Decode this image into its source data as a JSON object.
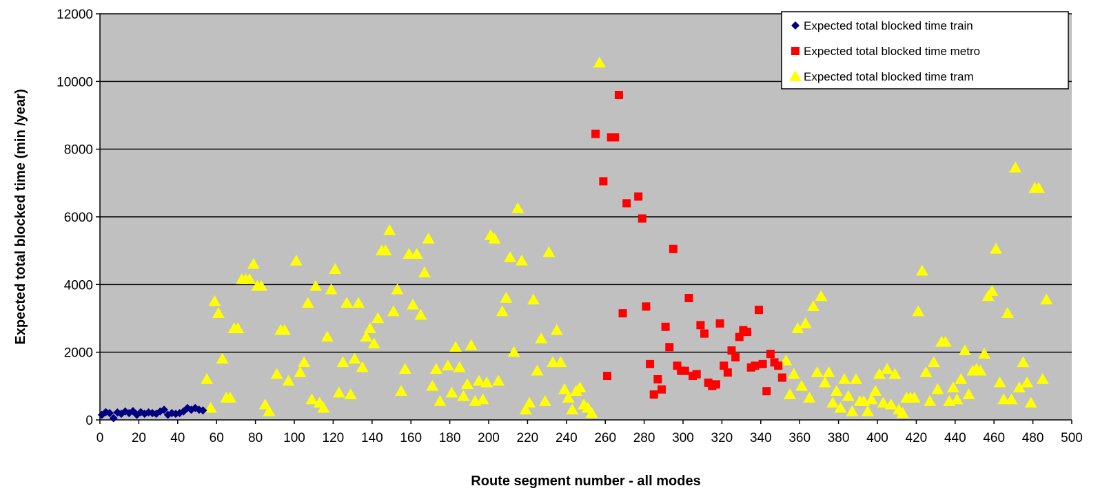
{
  "chart_data": {
    "type": "scatter",
    "title": "",
    "xlabel": "Route segment number - all modes",
    "ylabel": "Expected total blocked time (min /year)",
    "xlim": [
      0,
      500
    ],
    "ylim": [
      0,
      12000
    ],
    "x_ticks": [
      0,
      20,
      40,
      60,
      80,
      100,
      120,
      140,
      160,
      180,
      200,
      220,
      240,
      260,
      280,
      300,
      320,
      340,
      360,
      380,
      400,
      420,
      440,
      460,
      480,
      500
    ],
    "y_ticks": [
      0,
      2000,
      4000,
      6000,
      8000,
      10000,
      12000
    ],
    "grid": "horizontal",
    "plot_background": "#c0c0c0",
    "legend_position": "top-right",
    "series": [
      {
        "name": "Expected total blocked time train",
        "marker": "diamond",
        "color": "#000080",
        "points": [
          [
            1,
            150
          ],
          [
            3,
            230
          ],
          [
            5,
            200
          ],
          [
            7,
            50
          ],
          [
            9,
            220
          ],
          [
            11,
            180
          ],
          [
            13,
            250
          ],
          [
            15,
            200
          ],
          [
            17,
            260
          ],
          [
            19,
            150
          ],
          [
            21,
            230
          ],
          [
            23,
            180
          ],
          [
            25,
            220
          ],
          [
            27,
            200
          ],
          [
            29,
            180
          ],
          [
            31,
            250
          ],
          [
            33,
            300
          ],
          [
            35,
            150
          ],
          [
            37,
            200
          ],
          [
            39,
            180
          ],
          [
            41,
            200
          ],
          [
            43,
            250
          ],
          [
            45,
            350
          ],
          [
            47,
            300
          ],
          [
            49,
            350
          ],
          [
            51,
            300
          ],
          [
            53,
            280
          ]
        ]
      },
      {
        "name": "Expected total blocked time metro",
        "marker": "square",
        "color": "#ff0000",
        "points": [
          [
            255,
            8450
          ],
          [
            259,
            7050
          ],
          [
            261,
            1300
          ],
          [
            263,
            8350
          ],
          [
            265,
            8350
          ],
          [
            267,
            9600
          ],
          [
            269,
            3150
          ],
          [
            271,
            6400
          ],
          [
            277,
            6600
          ],
          [
            279,
            5950
          ],
          [
            281,
            3350
          ],
          [
            283,
            1650
          ],
          [
            285,
            750
          ],
          [
            287,
            1200
          ],
          [
            289,
            900
          ],
          [
            291,
            2750
          ],
          [
            293,
            2150
          ],
          [
            295,
            5050
          ],
          [
            297,
            1600
          ],
          [
            299,
            1450
          ],
          [
            301,
            1450
          ],
          [
            303,
            3600
          ],
          [
            305,
            1300
          ],
          [
            307,
            1350
          ],
          [
            309,
            2800
          ],
          [
            311,
            2550
          ],
          [
            313,
            1100
          ],
          [
            315,
            1000
          ],
          [
            317,
            1050
          ],
          [
            319,
            2850
          ],
          [
            321,
            1600
          ],
          [
            323,
            1400
          ],
          [
            325,
            2050
          ],
          [
            327,
            1850
          ],
          [
            329,
            2450
          ],
          [
            331,
            2650
          ],
          [
            333,
            2600
          ],
          [
            335,
            1550
          ],
          [
            337,
            1600
          ],
          [
            339,
            3250
          ],
          [
            341,
            1650
          ],
          [
            343,
            850
          ],
          [
            345,
            1950
          ],
          [
            347,
            1700
          ],
          [
            349,
            1600
          ],
          [
            351,
            1250
          ]
        ]
      },
      {
        "name": "Expected total blocked time tram",
        "marker": "triangle",
        "color": "#ffff00",
        "points": [
          [
            55,
            1200
          ],
          [
            57,
            350
          ],
          [
            59,
            3500
          ],
          [
            61,
            3150
          ],
          [
            63,
            1800
          ],
          [
            65,
            650
          ],
          [
            67,
            650
          ],
          [
            69,
            2700
          ],
          [
            71,
            2700
          ],
          [
            73,
            4150
          ],
          [
            75,
            4150
          ],
          [
            77,
            4150
          ],
          [
            79,
            4600
          ],
          [
            81,
            3950
          ],
          [
            83,
            3950
          ],
          [
            85,
            450
          ],
          [
            87,
            250
          ],
          [
            91,
            1350
          ],
          [
            93,
            2650
          ],
          [
            95,
            2650
          ],
          [
            97,
            1150
          ],
          [
            101,
            4700
          ],
          [
            103,
            1400
          ],
          [
            105,
            1700
          ],
          [
            107,
            3450
          ],
          [
            109,
            600
          ],
          [
            111,
            3950
          ],
          [
            113,
            500
          ],
          [
            115,
            350
          ],
          [
            117,
            2450
          ],
          [
            119,
            3850
          ],
          [
            121,
            4450
          ],
          [
            123,
            800
          ],
          [
            125,
            1700
          ],
          [
            127,
            3450
          ],
          [
            129,
            750
          ],
          [
            131,
            1800
          ],
          [
            133,
            3450
          ],
          [
            135,
            1550
          ],
          [
            137,
            2450
          ],
          [
            139,
            2700
          ],
          [
            141,
            2250
          ],
          [
            143,
            3000
          ],
          [
            145,
            5000
          ],
          [
            147,
            5000
          ],
          [
            149,
            5600
          ],
          [
            151,
            3200
          ],
          [
            153,
            3850
          ],
          [
            155,
            850
          ],
          [
            157,
            1500
          ],
          [
            159,
            4900
          ],
          [
            161,
            3400
          ],
          [
            163,
            4900
          ],
          [
            165,
            3100
          ],
          [
            167,
            4350
          ],
          [
            169,
            5350
          ],
          [
            171,
            1000
          ],
          [
            173,
            1500
          ],
          [
            175,
            550
          ],
          [
            179,
            1600
          ],
          [
            181,
            800
          ],
          [
            183,
            2150
          ],
          [
            185,
            1550
          ],
          [
            187,
            700
          ],
          [
            189,
            1050
          ],
          [
            191,
            2200
          ],
          [
            193,
            550
          ],
          [
            195,
            1150
          ],
          [
            197,
            600
          ],
          [
            199,
            1100
          ],
          [
            201,
            5450
          ],
          [
            203,
            5350
          ],
          [
            205,
            1150
          ],
          [
            207,
            3200
          ],
          [
            209,
            3600
          ],
          [
            211,
            4800
          ],
          [
            213,
            2000
          ],
          [
            215,
            6250
          ],
          [
            217,
            4700
          ],
          [
            219,
            300
          ],
          [
            221,
            500
          ],
          [
            223,
            3550
          ],
          [
            225,
            1450
          ],
          [
            227,
            2400
          ],
          [
            229,
            550
          ],
          [
            231,
            4950
          ],
          [
            233,
            1700
          ],
          [
            235,
            2650
          ],
          [
            237,
            1700
          ],
          [
            239,
            900
          ],
          [
            241,
            650
          ],
          [
            243,
            300
          ],
          [
            245,
            850
          ],
          [
            247,
            950
          ],
          [
            249,
            450
          ],
          [
            251,
            350
          ],
          [
            253,
            200
          ],
          [
            257,
            10550
          ],
          [
            353,
            1750
          ],
          [
            355,
            750
          ],
          [
            357,
            1350
          ],
          [
            359,
            2700
          ],
          [
            361,
            1000
          ],
          [
            363,
            2850
          ],
          [
            365,
            650
          ],
          [
            367,
            3350
          ],
          [
            369,
            1400
          ],
          [
            371,
            3650
          ],
          [
            373,
            1100
          ],
          [
            375,
            1400
          ],
          [
            377,
            500
          ],
          [
            379,
            850
          ],
          [
            381,
            350
          ],
          [
            383,
            1200
          ],
          [
            385,
            700
          ],
          [
            387,
            250
          ],
          [
            389,
            1200
          ],
          [
            391,
            550
          ],
          [
            393,
            550
          ],
          [
            395,
            250
          ],
          [
            397,
            600
          ],
          [
            399,
            850
          ],
          [
            401,
            1350
          ],
          [
            403,
            500
          ],
          [
            405,
            1500
          ],
          [
            407,
            450
          ],
          [
            409,
            1350
          ],
          [
            411,
            300
          ],
          [
            413,
            200
          ],
          [
            415,
            650
          ],
          [
            417,
            650
          ],
          [
            419,
            650
          ],
          [
            421,
            3200
          ],
          [
            423,
            4400
          ],
          [
            425,
            1400
          ],
          [
            427,
            550
          ],
          [
            429,
            1700
          ],
          [
            431,
            900
          ],
          [
            433,
            2300
          ],
          [
            435,
            2300
          ],
          [
            437,
            550
          ],
          [
            439,
            950
          ],
          [
            441,
            600
          ],
          [
            443,
            1200
          ],
          [
            445,
            2050
          ],
          [
            447,
            750
          ],
          [
            449,
            1450
          ],
          [
            451,
            1500
          ],
          [
            453,
            1450
          ],
          [
            455,
            1950
          ],
          [
            457,
            3650
          ],
          [
            459,
            3800
          ],
          [
            461,
            5050
          ],
          [
            463,
            1100
          ],
          [
            465,
            600
          ],
          [
            467,
            3150
          ],
          [
            469,
            600
          ],
          [
            471,
            7450
          ],
          [
            473,
            950
          ],
          [
            475,
            1700
          ],
          [
            477,
            1100
          ],
          [
            479,
            500
          ],
          [
            481,
            6850
          ],
          [
            483,
            6850
          ],
          [
            485,
            1200
          ],
          [
            487,
            3550
          ]
        ]
      }
    ]
  }
}
